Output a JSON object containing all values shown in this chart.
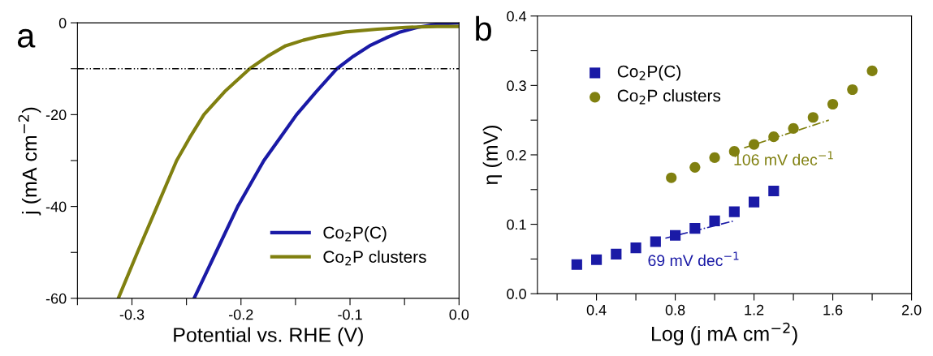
{
  "chart_data": [
    {
      "type": "line",
      "xlabel": "Potential vs. RHE (V)",
      "ylabel": "j (mA cm$^{−2}$)",
      "annotations": [
        "a"
      ],
      "xlim": [
        -0.35,
        0.0
      ],
      "ylim": [
        -60,
        0
      ],
      "xticks": [
        {
          "value": -0.35,
          "label": null
        },
        -0.3,
        {
          "value": -0.25,
          "label": null
        },
        -0.2,
        {
          "value": -0.15,
          "label": null
        },
        -0.1,
        {
          "value": -0.05,
          "label": null
        },
        {
          "value": 0.0,
          "label": "0.0"
        }
      ],
      "yticks": [
        -60,
        {
          "value": -50,
          "label": null
        },
        -40,
        {
          "value": -30,
          "label": null
        },
        -20,
        {
          "value": -10,
          "label": null
        },
        0
      ],
      "legend": "bottom right",
      "grid": false,
      "marker": "none",
      "line_style": "solid",
      "ref_lines": [
        {
          "axis": "y",
          "value": -10,
          "label": null,
          "color": "#000000",
          "line_style": "dashdotdot"
        }
      ],
      "series": [
        {
          "name": "Co$_{2}$P(C)",
          "color": "#1a1aa6",
          "x": [
            -0.243,
            -0.223,
            -0.203,
            -0.191,
            -0.179,
            -0.164,
            -0.149,
            -0.131,
            -0.112,
            -0.097,
            -0.082,
            -0.067,
            -0.054,
            -0.038,
            -0.02,
            0.0
          ],
          "values": [
            -60,
            -50,
            -40,
            -35,
            -30,
            -25,
            -20,
            -15,
            -10,
            -7.3,
            -5,
            -3.3,
            -2,
            -1,
            -0.3,
            0
          ]
        },
        {
          "name": "Co$_{2}$P clusters",
          "color": "#808010",
          "x": [
            -0.3125,
            -0.295,
            -0.277,
            -0.268,
            -0.259,
            -0.247,
            -0.234,
            -0.215,
            -0.192,
            -0.175,
            -0.159,
            -0.143,
            -0.129,
            -0.104,
            -0.075,
            -0.049,
            -0.02,
            0.0
          ],
          "values": [
            -60,
            -50,
            -40,
            -35,
            -30,
            -25,
            -20,
            -15,
            -10,
            -7.2,
            -5,
            -3.8,
            -3,
            -2,
            -1.4,
            -1,
            -0.8,
            -0.8
          ]
        }
      ]
    },
    {
      "type": "scatter",
      "xlabel": "Log (j mA cm$^{−2}$)",
      "ylabel": "η (mV)",
      "annotations": [
        "b"
      ],
      "xlim": [
        0.1,
        2.0
      ],
      "ylim": [
        0.0,
        0.4
      ],
      "xticks": [
        {
          "value": 0.2,
          "label": null
        },
        0.4,
        {
          "value": 0.6,
          "label": null
        },
        0.8,
        {
          "value": 1.0,
          "label": null
        },
        1.2,
        {
          "value": 1.4,
          "label": null
        },
        1.6,
        {
          "value": 1.8,
          "label": null
        },
        {
          "value": 2.0,
          "label": "2.0"
        }
      ],
      "yticks": [
        {
          "value": 0.0,
          "label": "0.0"
        },
        {
          "value": 0.05,
          "label": null
        },
        0.1,
        {
          "value": 0.15,
          "label": null
        },
        0.2,
        {
          "value": 0.25,
          "label": null
        },
        0.3,
        {
          "value": 0.35,
          "label": null
        },
        0.4
      ],
      "legend": "top left",
      "grid": false,
      "series": [
        {
          "name": "Co$_{2}$P(C)",
          "color": "#1a1aa6",
          "marker": "square",
          "x": [
            0.3,
            0.4,
            0.5,
            0.6,
            0.7,
            0.8,
            0.9,
            1.0,
            1.1,
            1.2,
            1.3
          ],
          "values": [
            0.042,
            0.049,
            0.057,
            0.066,
            0.075,
            0.084,
            0.094,
            0.105,
            0.118,
            0.132,
            0.148
          ]
        },
        {
          "name": "Co$_{2}$P clusters",
          "color": "#808010",
          "marker": "circle",
          "x": [
            0.78,
            0.9,
            1.0,
            1.1,
            1.2,
            1.3,
            1.4,
            1.5,
            1.6,
            1.7,
            1.8
          ],
          "values": [
            0.167,
            0.182,
            0.196,
            0.205,
            0.215,
            0.226,
            0.238,
            0.254,
            0.273,
            0.294,
            0.321
          ]
        },
        {
          "name": "69 mV dec$^{−1}$",
          "type": "line",
          "line_style": "dashdot",
          "color": "#1a1aa6",
          "x": [
            0.75,
            1.1
          ],
          "values": [
            0.08,
            0.105
          ]
        },
        {
          "name": "106 mV dec$^{−1}$",
          "type": "line",
          "line_style": "dashdot",
          "color": "#808010",
          "x": [
            1.15,
            1.58
          ],
          "values": [
            0.21,
            0.25
          ]
        }
      ]
    }
  ]
}
